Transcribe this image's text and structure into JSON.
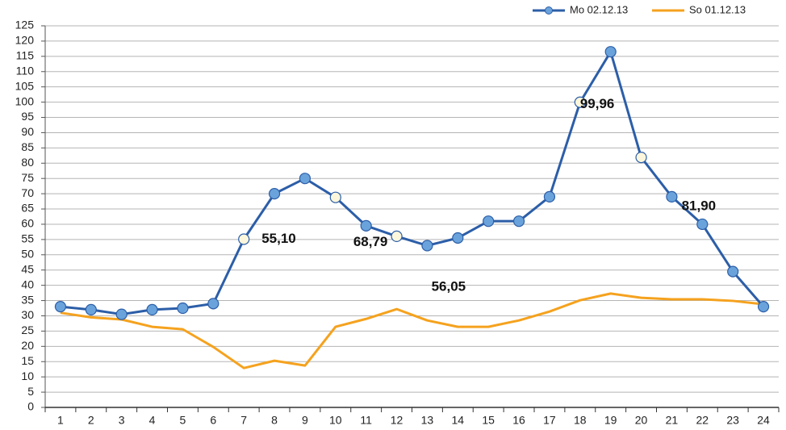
{
  "chart_data": {
    "type": "line",
    "categories": [
      "1",
      "2",
      "3",
      "4",
      "5",
      "6",
      "7",
      "8",
      "9",
      "10",
      "11",
      "12",
      "13",
      "14",
      "15",
      "16",
      "17",
      "18",
      "19",
      "20",
      "21",
      "22",
      "23",
      "24"
    ],
    "series": [
      {
        "name": "Mo 02.12.13",
        "color": "#2c5ea8",
        "marker_color": "#6aa3db",
        "highlight_color": "#fbf6dc",
        "values": [
          33,
          32,
          30.5,
          32,
          32.5,
          34,
          55.1,
          70,
          75,
          68.79,
          59.5,
          56.05,
          53,
          55.5,
          61,
          61,
          69,
          99.96,
          116.5,
          81.9,
          69,
          60,
          44.5,
          33
        ],
        "value_labels": [
          null,
          null,
          null,
          null,
          null,
          null,
          "55,10",
          null,
          null,
          "68,79",
          null,
          "56,05",
          null,
          null,
          null,
          null,
          null,
          "99,96",
          null,
          "81,90",
          null,
          null,
          null,
          null
        ]
      },
      {
        "name": "So 01.12.13",
        "color": "#f5a21e",
        "values": [
          31,
          29.5,
          28.8,
          26.4,
          25.6,
          19.8,
          12.9,
          15.3,
          13.7,
          26.4,
          29,
          32.2,
          28.5,
          26.4,
          26.4,
          28.5,
          31.4,
          35.1,
          37.3,
          35.9,
          35.4,
          35.4,
          34.9,
          33.8
        ]
      }
    ],
    "ylim": [
      0,
      125
    ],
    "yticks": [
      0,
      5,
      10,
      15,
      20,
      25,
      30,
      35,
      40,
      45,
      50,
      55,
      60,
      65,
      70,
      75,
      80,
      85,
      90,
      95,
      100,
      105,
      110,
      115,
      120,
      125
    ],
    "grid": true,
    "legend": "top-right"
  }
}
